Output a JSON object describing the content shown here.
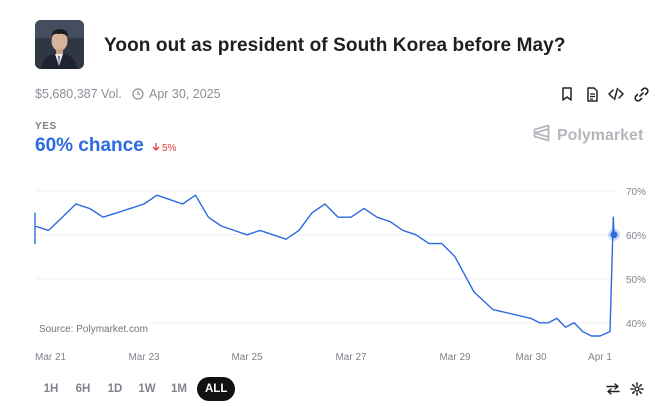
{
  "market": {
    "title": "Yoon out as president of South Korea before May?",
    "volume": "$5,680,387 Vol.",
    "end_date": "Apr 30, 2025",
    "outcome_label": "YES",
    "chance": "60% chance",
    "change": "5%",
    "brand": "Polymarket",
    "source": "Source: Polymarket.com"
  },
  "toolbar": {
    "icons": [
      "bookmark-icon",
      "document-icon",
      "embed-code-icon",
      "link-icon"
    ]
  },
  "time_ranges": [
    "1H",
    "6H",
    "1D",
    "1W",
    "1M",
    "ALL"
  ],
  "active_range": "ALL",
  "colors": {
    "accent": "#2c6ae0",
    "negative": "#e23d3d",
    "muted": "#8a8f98"
  },
  "chart_data": {
    "type": "line",
    "title": "",
    "xlabel": "",
    "ylabel": "",
    "x_ticks": [
      "Mar 21",
      "Mar 23",
      "Mar 25",
      "Mar 27",
      "Mar 29",
      "Mar 30",
      "Apr 1"
    ],
    "y_ticks": [
      "70%",
      "60%",
      "50%",
      "40%"
    ],
    "ylim": [
      37,
      72
    ],
    "grid": true,
    "series": [
      {
        "name": "",
        "x": [
          "Mar 20 12:00",
          "Mar 20 18:00",
          "Mar 21 00:00",
          "Mar 21 06:00",
          "Mar 21 12:00",
          "Mar 21 18:00",
          "Mar 22 00:00",
          "Mar 22 06:00",
          "Mar 22 12:00",
          "Mar 22 18:00",
          "Mar 23 00:00",
          "Mar 23 06:00",
          "Mar 23 12:00",
          "Mar 23 18:00",
          "Mar 24 00:00",
          "Mar 24 06:00",
          "Mar 24 12:00",
          "Mar 24 18:00",
          "Mar 25 00:00",
          "Mar 25 06:00",
          "Mar 25 12:00",
          "Mar 25 18:00",
          "Mar 26 00:00",
          "Mar 26 06:00",
          "Mar 26 12:00",
          "Mar 26 18:00",
          "Mar 27 00:00",
          "Mar 27 06:00",
          "Mar 27 12:00",
          "Mar 27 18:00",
          "Mar 28 00:00",
          "Mar 28 06:00",
          "Mar 28 12:00",
          "Mar 28 18:00",
          "Mar 29 00:00",
          "Mar 29 06:00",
          "Mar 29 12:00",
          "Mar 29 18:00",
          "Mar 30 00:00",
          "Mar 30 06:00",
          "Mar 30 12:00",
          "Mar 30 18:00",
          "Mar 31 00:00",
          "Mar 31 06:00",
          "Mar 31 12:00",
          "Mar 31 18:00",
          "Apr 1 00:00",
          "Apr 1 03:00",
          "Apr 1 04:00",
          "Apr 1 06:00"
        ],
        "y": [
          65,
          58,
          62,
          61,
          64,
          67,
          66,
          64,
          65,
          66,
          67,
          69,
          68,
          67,
          69,
          64,
          62,
          61,
          60,
          61,
          60,
          59,
          61,
          65,
          67,
          64,
          64,
          66,
          64,
          63,
          61,
          60,
          58,
          58,
          55,
          47,
          43,
          42,
          41,
          40,
          40,
          41,
          39,
          40,
          38,
          37,
          37,
          38,
          64,
          60
        ]
      }
    ]
  }
}
